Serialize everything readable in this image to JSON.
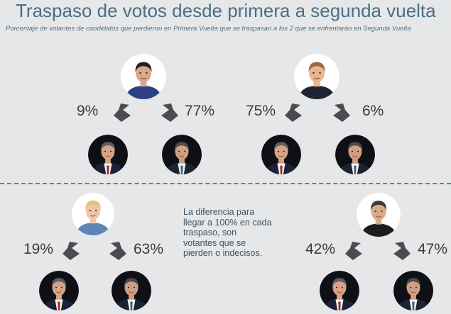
{
  "title": "Traspaso de votos desde primera a segunda vuelta",
  "subtitle": "Porcentaje de votantes de candidatos que perdieron en Primera Vuelta que se traspasan a los 2 que se enfrentarán en Segunda Vuelta",
  "note": "La diferencia para llegar a 100% en cada traspaso, son votantes que se pierden o indecisos.",
  "colors": {
    "background": "#e6e7e8",
    "title": "#4a6f86",
    "divider": "#4f8c8c",
    "arrow": "#4a4c4f"
  },
  "chart_data": {
    "type": "flow",
    "title": "Traspaso de votos desde primera a segunda vuelta",
    "subtitle": "Porcentaje de votantes de candidatos que perdieron en Primera Vuelta que se traspasan a los 2 que se enfrentarán en Segunda Vuelta",
    "targets": [
      "second-round-candidate-1",
      "second-round-candidate-2"
    ],
    "groups": [
      {
        "source": "candidate-1",
        "labels": [
          "9%",
          "77%"
        ],
        "values": [
          9,
          77
        ]
      },
      {
        "source": "candidate-2",
        "labels": [
          "75%",
          "6%"
        ],
        "values": [
          75,
          6
        ]
      },
      {
        "source": "candidate-3",
        "labels": [
          "19%",
          "63%"
        ],
        "values": [
          19,
          63
        ]
      },
      {
        "source": "candidate-4",
        "labels": [
          "42%",
          "47%"
        ],
        "values": [
          42,
          47
        ]
      }
    ]
  }
}
